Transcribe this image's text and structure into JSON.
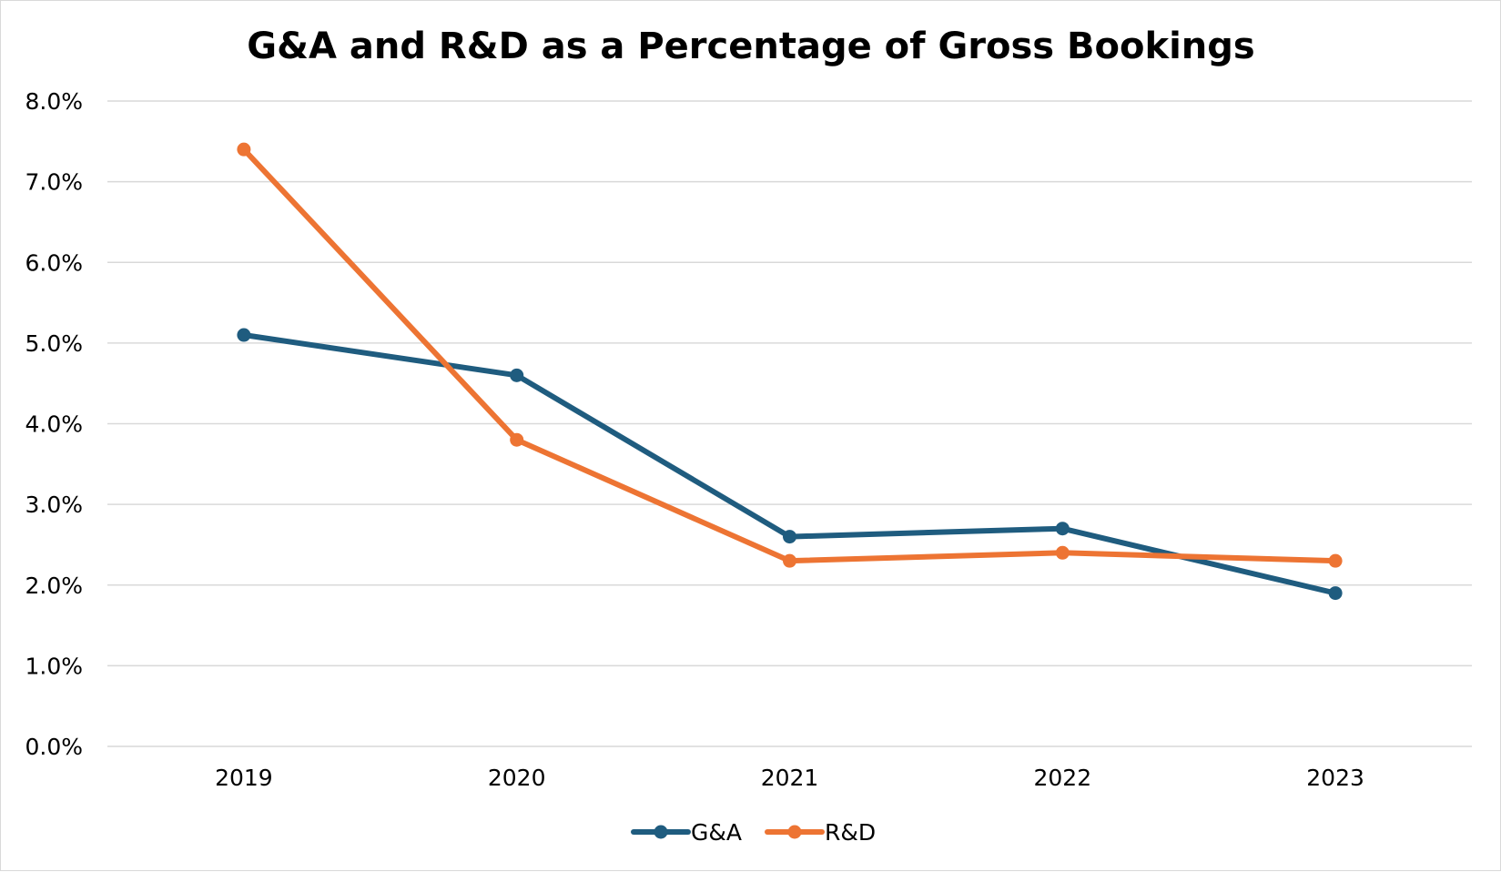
{
  "chart_data": {
    "type": "line",
    "title": "G&A and R&D as a Percentage of Gross Bookings",
    "xlabel": "",
    "ylabel": "",
    "categories": [
      "2019",
      "2020",
      "2021",
      "2022",
      "2023"
    ],
    "y_ticks": [
      "0.0%",
      "1.0%",
      "2.0%",
      "3.0%",
      "4.0%",
      "5.0%",
      "6.0%",
      "7.0%",
      "8.0%"
    ],
    "ylim": [
      0,
      8
    ],
    "grid": true,
    "legend_position": "bottom",
    "series": [
      {
        "name": "G&A",
        "color": "#1f5c7f",
        "values": [
          5.1,
          4.6,
          2.6,
          2.7,
          1.9
        ]
      },
      {
        "name": "R&D",
        "color": "#ed7433",
        "values": [
          7.4,
          3.8,
          2.3,
          2.4,
          2.3
        ]
      }
    ]
  }
}
